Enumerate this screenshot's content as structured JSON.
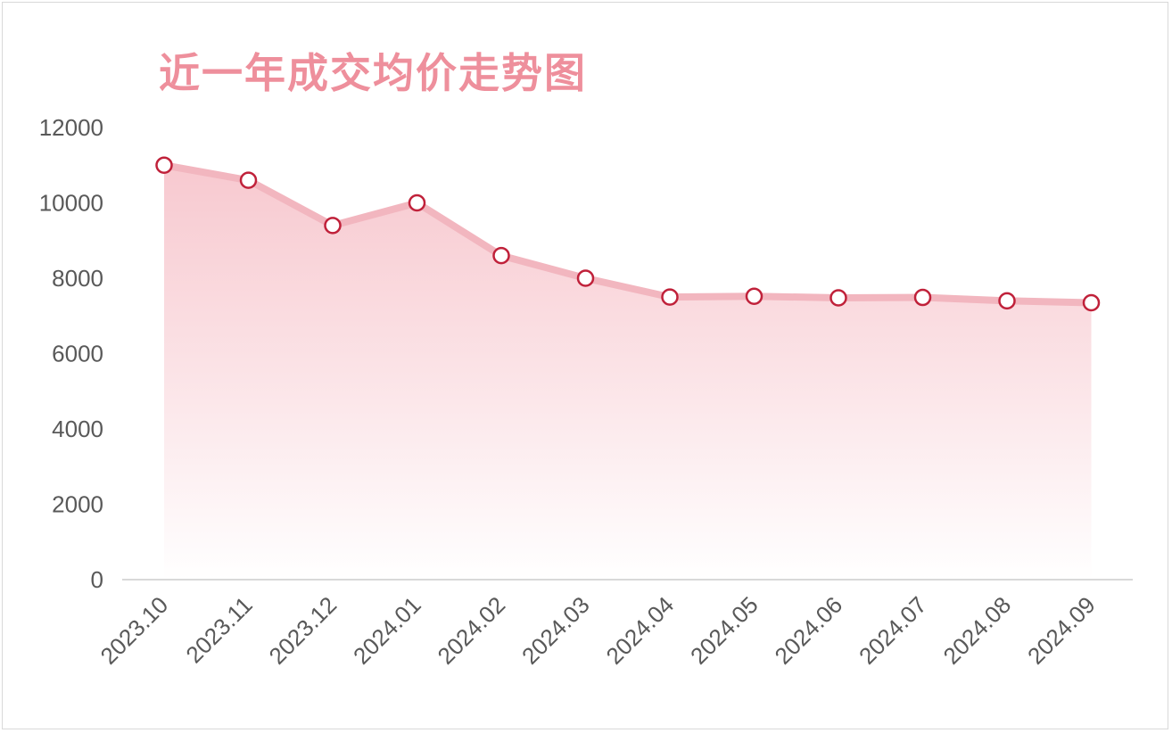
{
  "chart_data": {
    "type": "area",
    "title": "近一年成交均价走势图",
    "categories": [
      "2023.10",
      "2023.11",
      "2023.12",
      "2024.01",
      "2024.02",
      "2024.03",
      "2024.04",
      "2024.05",
      "2024.06",
      "2024.07",
      "2024.08",
      "2024.09"
    ],
    "values": [
      11000,
      10600,
      9400,
      10000,
      8600,
      8000,
      7500,
      7520,
      7480,
      7490,
      7400,
      7350
    ],
    "ylim": [
      0,
      12000
    ],
    "yticks": [
      0,
      2000,
      4000,
      6000,
      8000,
      10000,
      12000
    ],
    "grid": false,
    "legend": "none",
    "colors": {
      "line": "#f2b6bf",
      "area_top": "#f7c6cd",
      "area_bottom": "#ffffff",
      "marker_stroke": "#c0213a",
      "marker_fill": "#ffffff",
      "title": "#ee8f9c",
      "axis": "#d9d9d9"
    }
  }
}
